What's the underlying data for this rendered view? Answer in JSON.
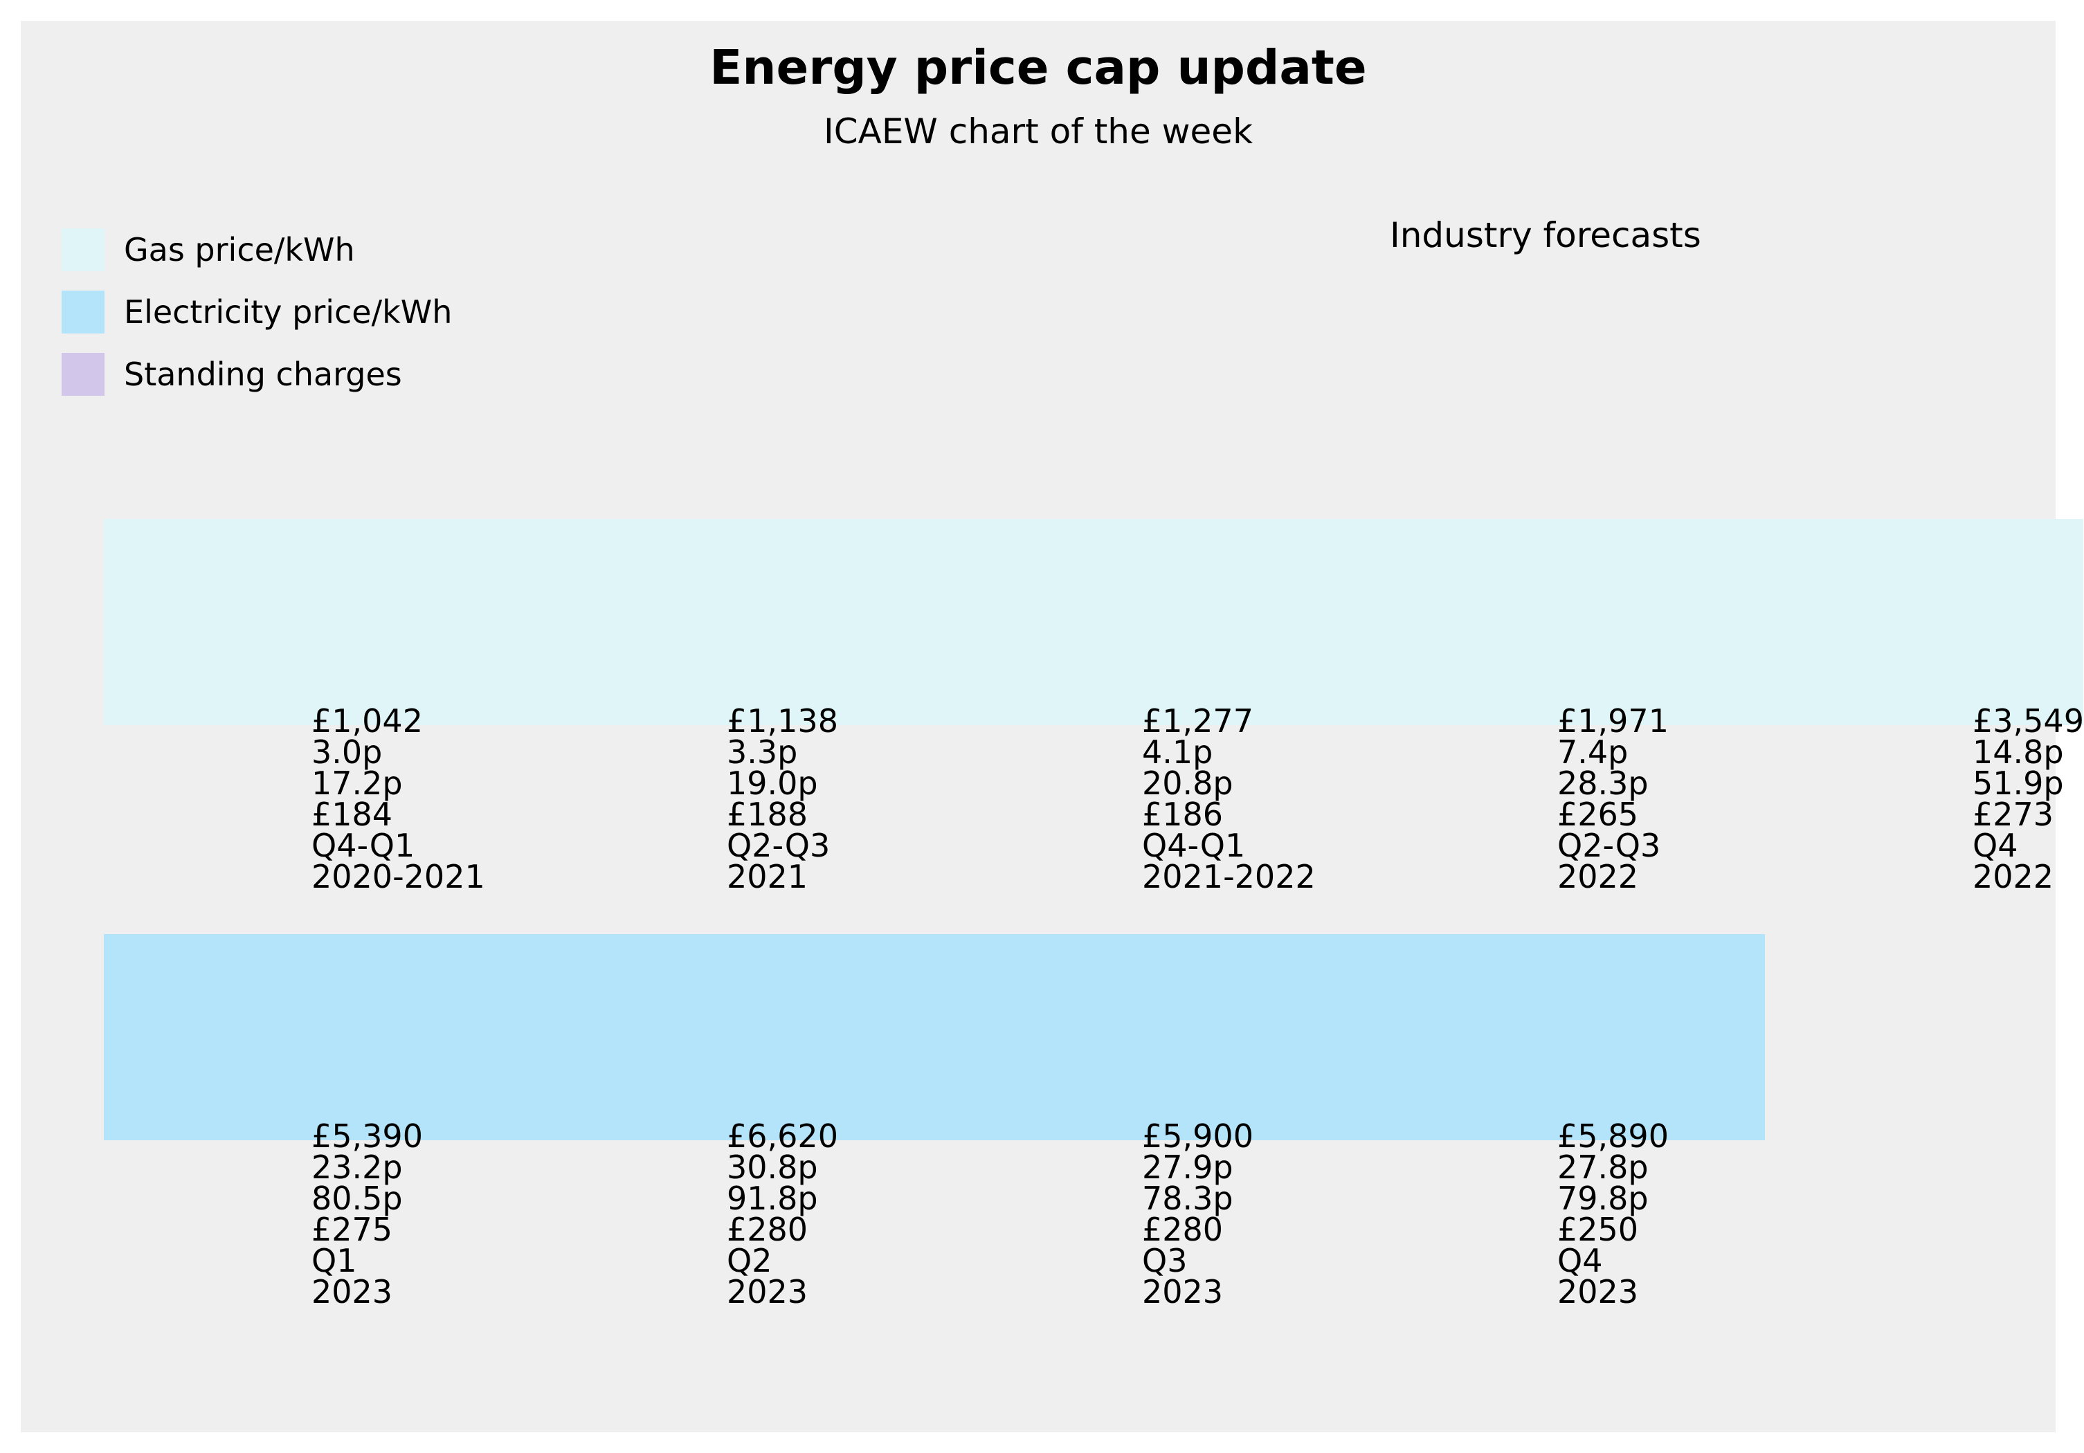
{
  "chart_data": {
    "type": "table",
    "title": "Energy price cap update",
    "subtitle": "ICAEW chart of the week",
    "annotation": "Industry forecasts",
    "legend": [
      {
        "label": "Gas price/kWh",
        "color": "#dff5f7"
      },
      {
        "label": "Electricity price/kWh",
        "color": "#b3e4f9"
      },
      {
        "label": "Standing charges",
        "color": "#d2c6ea"
      }
    ],
    "periods": [
      {
        "cap": "£1,042",
        "gas": "3.0p",
        "electricity": "17.2p",
        "standing": "£184",
        "quarter": "Q4-Q1",
        "year": "2020-2021"
      },
      {
        "cap": "£1,138",
        "gas": "3.3p",
        "electricity": "19.0p",
        "standing": "£188",
        "quarter": "Q2-Q3",
        "year": "2021"
      },
      {
        "cap": "£1,277",
        "gas": "4.1p",
        "electricity": "20.8p",
        "standing": "£186",
        "quarter": "Q4-Q1",
        "year": "2021-2022"
      },
      {
        "cap": "£1,971",
        "gas": "7.4p",
        "electricity": "28.3p",
        "standing": "£265",
        "quarter": "Q2-Q3",
        "year": "2022"
      },
      {
        "cap": "£3,549",
        "gas": "14.8p",
        "electricity": "51.9p",
        "standing": "£273",
        "quarter": "Q4",
        "year": "2022"
      },
      {
        "cap": "£5,390",
        "gas": "23.2p",
        "electricity": "80.5p",
        "standing": "£275",
        "quarter": "Q1",
        "year": "2023"
      },
      {
        "cap": "£6,620",
        "gas": "30.8p",
        "electricity": "91.8p",
        "standing": "£280",
        "quarter": "Q2",
        "year": "2023"
      },
      {
        "cap": "£5,900",
        "gas": "27.9p",
        "electricity": "78.3p",
        "standing": "£280",
        "quarter": "Q3",
        "year": "2023"
      },
      {
        "cap": "£5,890",
        "gas": "27.8p",
        "electricity": "79.8p",
        "standing": "£250",
        "quarter": "Q4",
        "year": "2023"
      }
    ]
  }
}
